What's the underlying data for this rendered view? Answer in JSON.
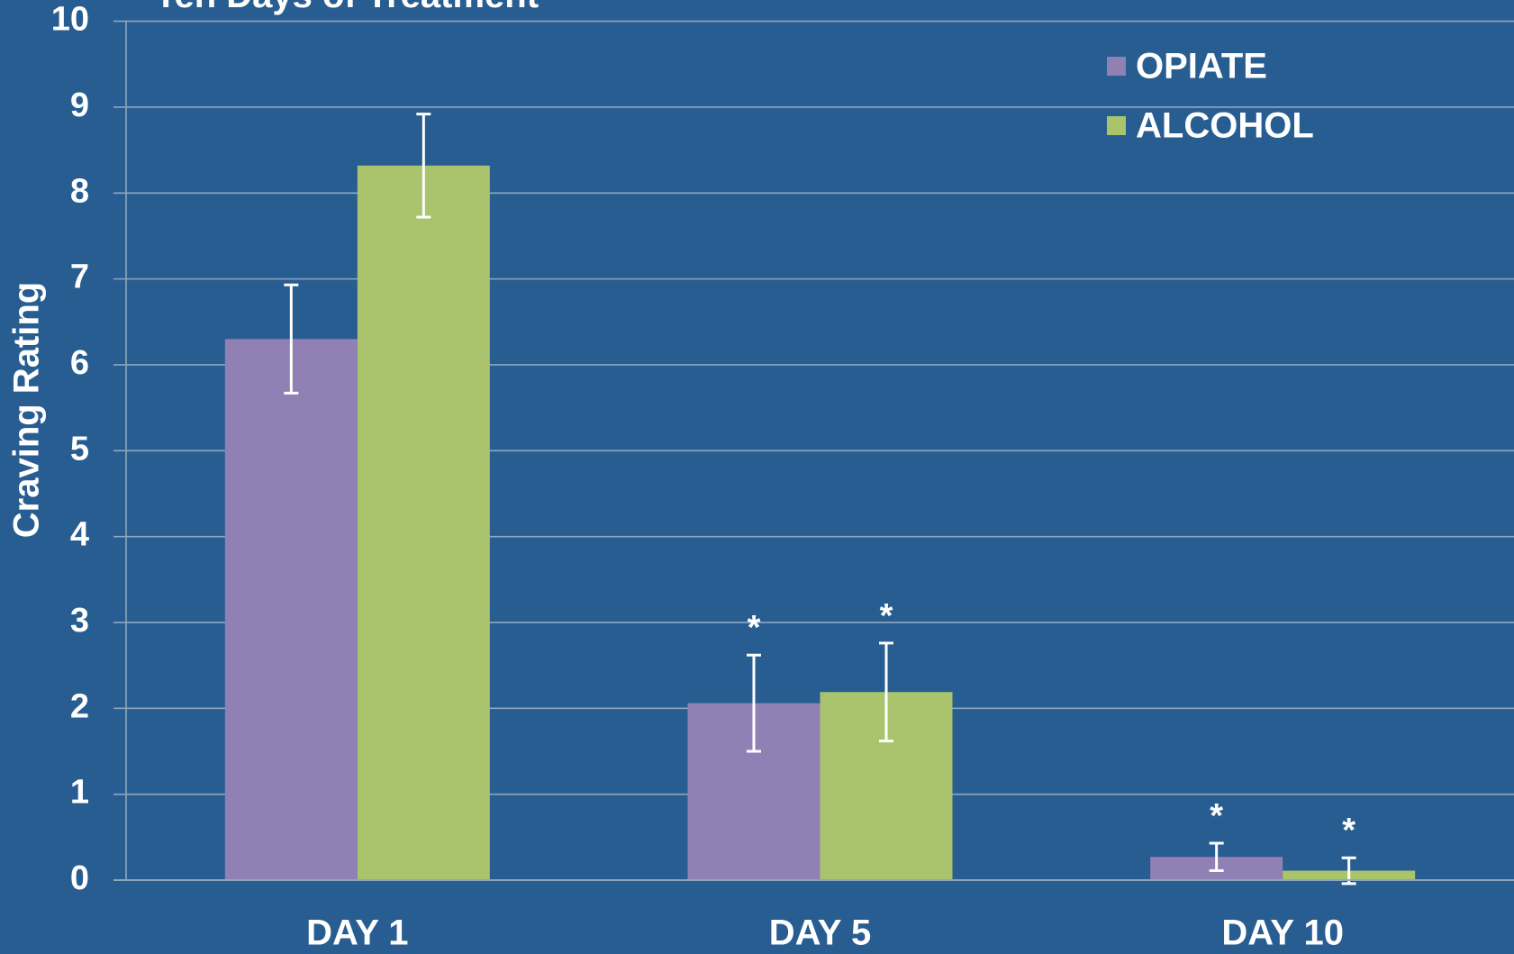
{
  "chart_data": {
    "type": "bar",
    "title": "Ten Days of Treatment",
    "y_label": "Craving Rating",
    "categories": [
      "DAY 1",
      "DAY 5",
      "DAY 10"
    ],
    "series": [
      {
        "name": "OPIATE",
        "color": "#9180b4",
        "values": [
          6.3,
          2.06,
          0.27
        ],
        "errors": [
          0.63,
          0.56,
          0.16
        ],
        "markers": [
          null,
          "*",
          "*"
        ]
      },
      {
        "name": "ALCOHOL",
        "color": "#a9c46c",
        "values": [
          8.32,
          2.19,
          0.11
        ],
        "errors": [
          0.6,
          0.57,
          0.15
        ],
        "markers": [
          null,
          "*",
          "*"
        ]
      }
    ],
    "ylim": [
      0,
      10
    ],
    "yticks": [
      0,
      1,
      2,
      3,
      4,
      5,
      6,
      7,
      8,
      9,
      10
    ],
    "grid": true,
    "legend": "top-right"
  }
}
